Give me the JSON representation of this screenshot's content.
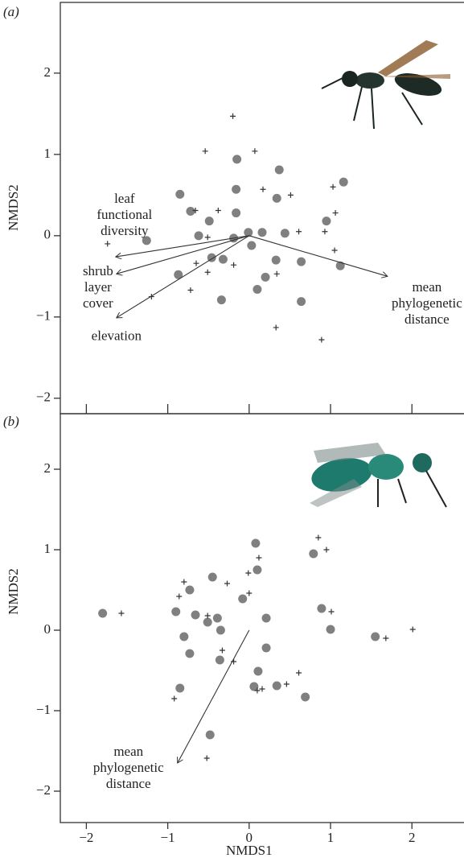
{
  "chart_data": [
    {
      "type": "scatter",
      "panel_label": "(a)",
      "ylabel": "NMDS2",
      "xlim": [
        -2.32,
        2.63
      ],
      "ylim": [
        -2.19,
        2.87
      ],
      "xticks": [
        {
          "value": -2,
          "label": "−2"
        },
        {
          "value": -1,
          "label": "−1"
        },
        0,
        1,
        2
      ],
      "xtick_labels": false,
      "yticks": [
        {
          "value": -2,
          "label": "−2"
        },
        {
          "value": -1,
          "label": "−1"
        },
        0,
        1,
        2
      ],
      "series": [
        {
          "marker": "circle",
          "color": "#808080",
          "x": [
            -0.15,
            0.37,
            -0.16,
            -0.85,
            1.16,
            0.34,
            -0.72,
            -0.16,
            -0.49,
            0.95,
            -1.26,
            -0.62,
            -0.01,
            0.16,
            0.44,
            -0.19,
            0.03,
            -0.46,
            -0.32,
            0.33,
            0.64,
            1.12,
            -0.87,
            0.2,
            0.1,
            -0.34,
            0.64
          ],
          "values": [
            0.94,
            0.81,
            0.57,
            0.51,
            0.66,
            0.46,
            0.3,
            0.28,
            0.18,
            0.18,
            -0.06,
            0.0,
            0.04,
            0.04,
            0.03,
            -0.03,
            -0.12,
            -0.27,
            -0.29,
            -0.3,
            -0.32,
            -0.37,
            -0.48,
            -0.51,
            -0.66,
            -0.79,
            -0.81
          ]
        },
        {
          "marker": "plus",
          "color": "#333333",
          "x": [
            -0.2,
            -0.54,
            0.07,
            0.17,
            0.51,
            1.03,
            1.06,
            -0.66,
            -0.38,
            -0.51,
            0.61,
            0.93,
            -1.74,
            1.05,
            -0.65,
            -0.19,
            -0.51,
            0.34,
            -0.72,
            -1.2,
            0.33,
            0.89
          ],
          "values": [
            1.47,
            1.04,
            1.04,
            0.57,
            0.5,
            0.6,
            0.28,
            0.31,
            0.31,
            -0.02,
            0.05,
            0.05,
            -0.1,
            -0.18,
            -0.34,
            -0.36,
            -0.45,
            -0.47,
            -0.67,
            -0.75,
            -1.13,
            -1.28
          ]
        }
      ],
      "arrows": [
        {
          "label": [
            "leaf",
            "functional",
            "diversity"
          ],
          "x": -1.64,
          "y": -0.26
        },
        {
          "label": [
            "shrub",
            "layer",
            "cover"
          ],
          "x": -1.63,
          "y": -0.47
        },
        {
          "label": [
            "elevation"
          ],
          "x": -1.63,
          "y": -1.01
        },
        {
          "label": [
            "mean",
            "phylogenetic",
            "distance"
          ],
          "x": 1.7,
          "y": -0.5
        }
      ]
    },
    {
      "type": "scatter",
      "panel_label": "(b)",
      "ylabel": "NMDS2",
      "xlabel": "NMDS1",
      "xlim": [
        -2.32,
        2.63
      ],
      "ylim": [
        -2.39,
        2.69
      ],
      "xticks": [
        {
          "value": -2,
          "label": "−2"
        },
        {
          "value": -1,
          "label": "−1"
        },
        0,
        1,
        2
      ],
      "xtick_labels": true,
      "yticks": [
        {
          "value": -2,
          "label": "−2"
        },
        {
          "value": -1,
          "label": "−1"
        },
        0,
        1,
        2
      ],
      "series": [
        {
          "marker": "circle",
          "color": "#808080",
          "x": [
            -1.8,
            0.08,
            0.79,
            -0.45,
            0.1,
            -0.73,
            -0.08,
            -0.9,
            0.89,
            -0.66,
            -0.39,
            0.21,
            -0.51,
            1.0,
            1.55,
            -0.35,
            -0.8,
            -0.73,
            0.21,
            -0.36,
            0.11,
            0.06,
            0.34,
            0.69,
            -0.85,
            -0.48
          ],
          "values": [
            0.21,
            1.08,
            0.95,
            0.66,
            0.75,
            0.5,
            0.39,
            0.23,
            0.27,
            0.19,
            0.15,
            0.15,
            0.1,
            0.01,
            -0.08,
            0.0,
            -0.08,
            -0.29,
            -0.22,
            -0.37,
            -0.51,
            -0.7,
            -0.69,
            -0.83,
            -0.72,
            -1.3
          ]
        },
        {
          "marker": "plus",
          "color": "#333333",
          "x": [
            -1.57,
            -0.8,
            -0.86,
            -0.27,
            -0.01,
            0.12,
            0.85,
            0.95,
            0.0,
            1.01,
            -0.51,
            -0.33,
            -0.19,
            0.1,
            0.16,
            0.61,
            0.46,
            -0.92,
            -0.52,
            1.68,
            2.01
          ],
          "values": [
            0.21,
            0.6,
            0.42,
            0.58,
            0.71,
            0.9,
            1.15,
            1.0,
            0.46,
            0.23,
            0.18,
            -0.25,
            -0.39,
            -0.75,
            -0.73,
            -0.53,
            -0.67,
            -0.85,
            -1.59,
            -0.1,
            0.01
          ]
        }
      ],
      "arrows": [
        {
          "label": [
            "mean",
            "phylogenetic",
            "distance"
          ],
          "x": -0.88,
          "y": -1.65
        }
      ]
    }
  ]
}
